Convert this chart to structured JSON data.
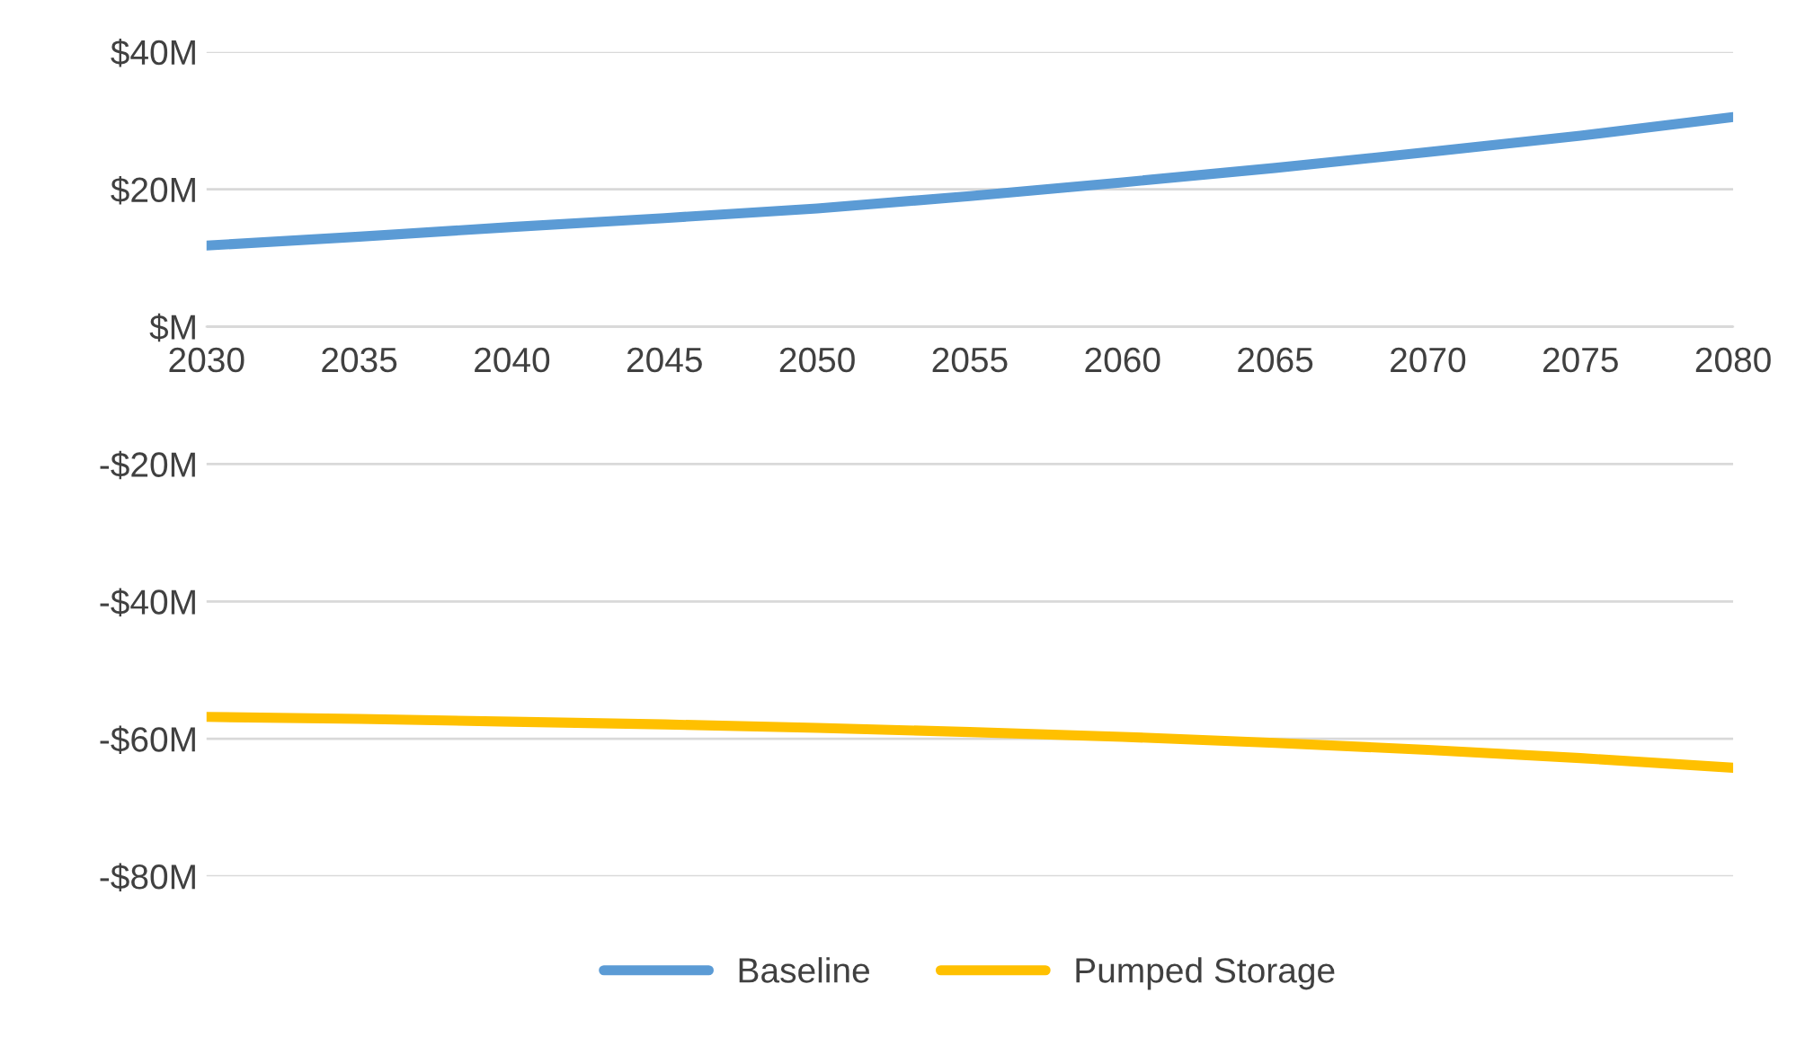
{
  "chart_data": {
    "type": "line",
    "x": [
      2030,
      2035,
      2040,
      2045,
      2050,
      2055,
      2060,
      2065,
      2070,
      2075,
      2080
    ],
    "series": [
      {
        "name": "Baseline",
        "color": "#5b9bd5",
        "values": [
          11.8,
          13.1,
          14.5,
          15.8,
          17.2,
          19.0,
          21.0,
          23.1,
          25.4,
          27.8,
          30.5
        ]
      },
      {
        "name": "Pumped Storage",
        "color": "#ffc000",
        "values": [
          -56.8,
          -57.1,
          -57.5,
          -57.9,
          -58.4,
          -59.0,
          -59.7,
          -60.6,
          -61.6,
          -62.8,
          -64.2
        ]
      }
    ],
    "xlim": [
      2030,
      2080
    ],
    "xticks": [
      2030,
      2035,
      2040,
      2045,
      2050,
      2055,
      2060,
      2065,
      2070,
      2075,
      2080
    ],
    "ylim": [
      -80,
      40
    ],
    "yticks": [
      {
        "value": -80,
        "label": "-$80M"
      },
      {
        "value": -60,
        "label": "-$60M"
      },
      {
        "value": -40,
        "label": "-$40M"
      },
      {
        "value": -20,
        "label": "-$20M"
      },
      {
        "value": 0,
        "label": "$M"
      },
      {
        "value": 20,
        "label": "$20M"
      },
      {
        "value": 40,
        "label": "$40M"
      }
    ],
    "grid": "y",
    "legend": "bottom",
    "marker": "none",
    "line_style": "solid"
  }
}
